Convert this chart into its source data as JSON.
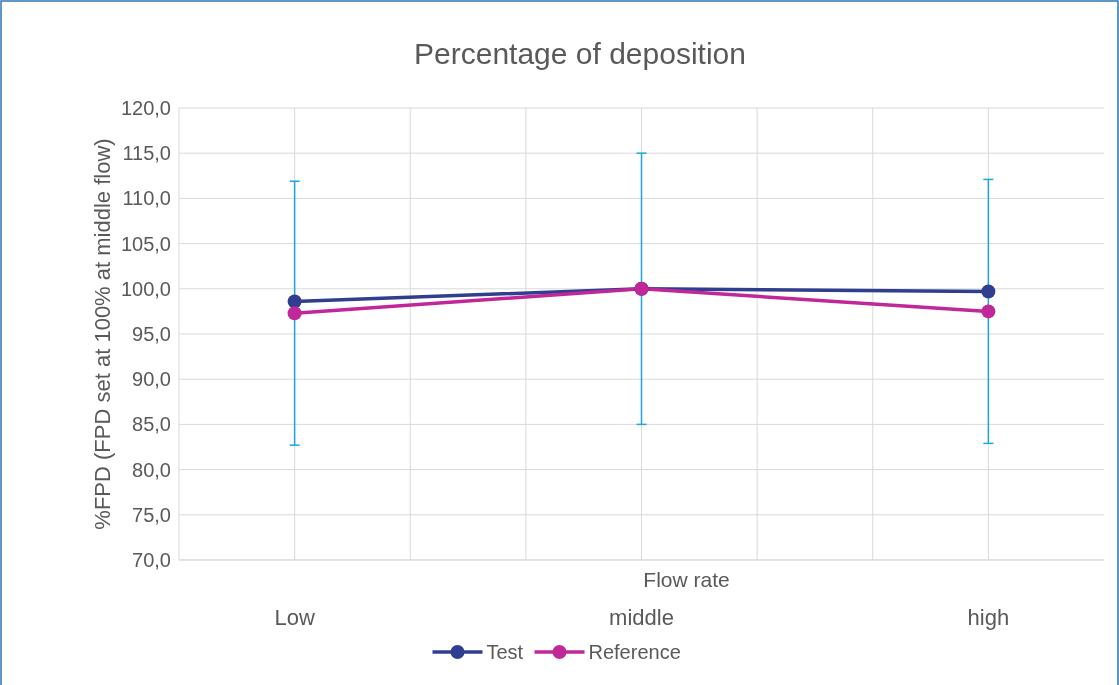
{
  "chart_data": {
    "type": "line",
    "title": "Percentage of deposition",
    "xlabel": "Flow rate",
    "ylabel": "%FPD (FPD set at 100% at middle flow)",
    "categories": [
      "Low",
      null,
      null,
      "middle",
      null,
      null,
      "high"
    ],
    "ylim": [
      70,
      120
    ],
    "yticks": [
      {
        "value": 70,
        "label": "70,0"
      },
      {
        "value": 75,
        "label": "75,0"
      },
      {
        "value": 80,
        "label": "80,0"
      },
      {
        "value": 85,
        "label": "85,0"
      },
      {
        "value": 90,
        "label": "90,0"
      },
      {
        "value": 95,
        "label": "95,0"
      },
      {
        "value": 100,
        "label": "100,0"
      },
      {
        "value": 105,
        "label": "105,0"
      },
      {
        "value": 110,
        "label": "110,0"
      },
      {
        "value": 115,
        "label": "115,0"
      },
      {
        "value": 120,
        "label": "120,0"
      }
    ],
    "series": [
      {
        "name": "Test",
        "color": "#2f3e8e",
        "values": [
          98.6,
          null,
          null,
          100,
          null,
          null,
          99.7
        ]
      },
      {
        "name": "Reference",
        "color": "#c0289a",
        "values": [
          97.3,
          null,
          null,
          100,
          null,
          null,
          97.5
        ],
        "errors": [
          [
            82.7,
            111.9
          ],
          null,
          null,
          [
            85,
            115
          ],
          null,
          null,
          [
            82.9,
            112.1
          ]
        ]
      }
    ],
    "grid": true,
    "legend": "bottom",
    "marker": "circle",
    "line_style": "solid"
  }
}
